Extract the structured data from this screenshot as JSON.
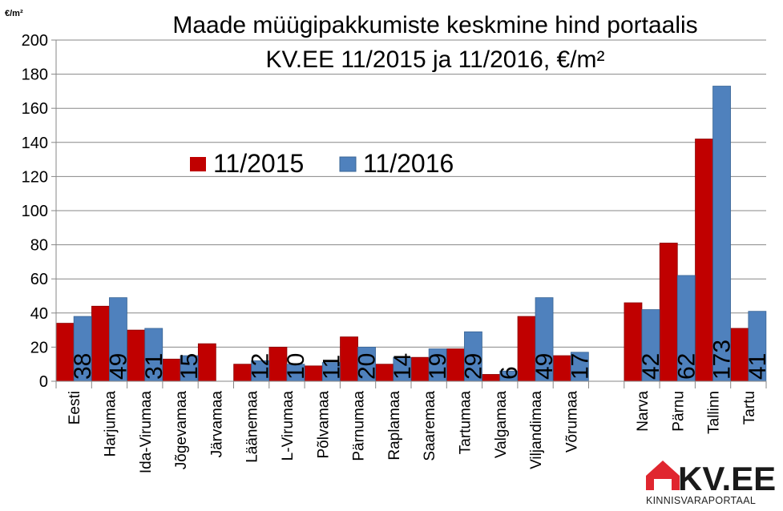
{
  "chart_data": {
    "type": "bar",
    "title_lines": [
      "Maade müügipakkumiste keskmine hind portaalis",
      "KV.EE 11/2015 ja 11/2016, €/m²"
    ],
    "unit_label": "€/m²",
    "categories": [
      "Eesti",
      "Harjumaa",
      "Ida-Virumaa",
      "Jõgevamaa",
      "Järvamaa",
      "Läänemaa",
      "L-Virumaa",
      "Põlvamaa",
      "Pärnumaa",
      "Raplamaa",
      "Saaremaa",
      "Tartumaa",
      "Valgamaa",
      "Viljandimaa",
      "Võrumaa",
      "",
      "Narva",
      "Pärnu",
      "Tallinn",
      "Tartu"
    ],
    "series": [
      {
        "name": "11/2015",
        "color": "#c00000",
        "values": [
          34,
          44,
          30,
          13,
          22,
          10,
          20,
          9,
          26,
          10,
          14,
          19,
          4,
          38,
          15,
          null,
          46,
          81,
          142,
          31
        ]
      },
      {
        "name": "11/2016",
        "color": "#4f81bd",
        "values": [
          38,
          49,
          31,
          15,
          null,
          12,
          10,
          11,
          20,
          14,
          19,
          29,
          6,
          49,
          17,
          null,
          42,
          62,
          173,
          41
        ]
      }
    ],
    "data_labels_series": "11/2016",
    "ylim": [
      0,
      200
    ],
    "yticks": [
      0,
      20,
      40,
      60,
      80,
      100,
      120,
      140,
      160,
      180,
      200
    ],
    "grid": true,
    "legend_position": "upper-left"
  },
  "logo": {
    "text": "KV.EE",
    "subtitle": "KINNISVARAPORTAAL",
    "color": "#e0262f"
  }
}
